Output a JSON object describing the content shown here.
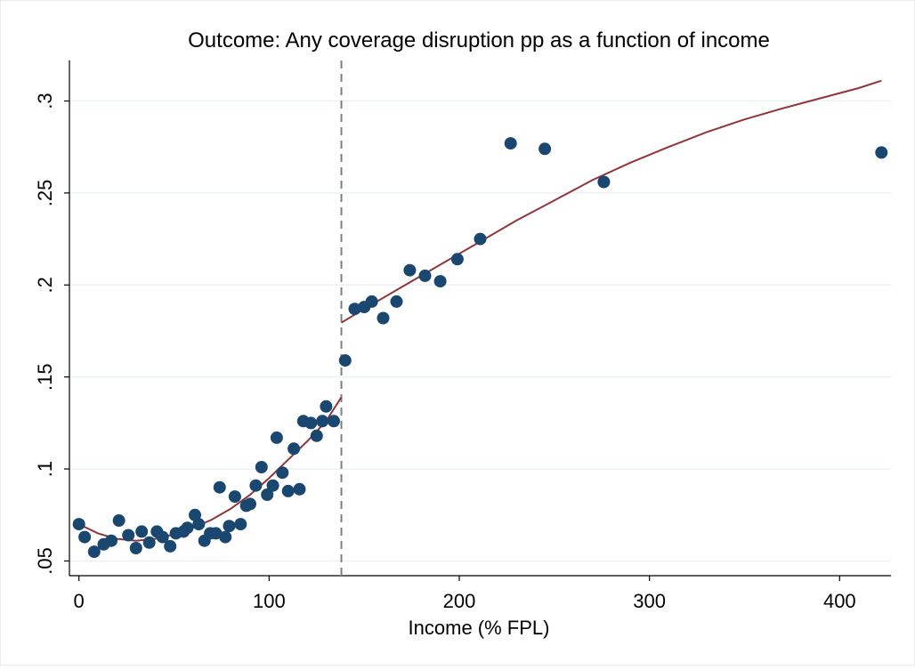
{
  "chart_data": {
    "type": "scatter",
    "title": "Outcome: Any coverage disruption pp as a function of income",
    "xlabel": "Income (% FPL)",
    "ylabel": "",
    "xlim": [
      -5,
      427
    ],
    "ylim": [
      0.042,
      0.322
    ],
    "x_ticks": [
      0,
      100,
      200,
      300,
      400
    ],
    "y_ticks": [
      0.05,
      0.1,
      0.15,
      0.2,
      0.25,
      0.3
    ],
    "x_tick_labels": [
      "0",
      "100",
      "200",
      "300",
      "400"
    ],
    "y_tick_labels": [
      ".05",
      ".1",
      ".15",
      ".2",
      ".25",
      ".3"
    ],
    "grid": "horizontal",
    "cutoff_x": 138,
    "colors": {
      "points": "#1a476f",
      "fit": "#90353b",
      "cutoff": "#808080",
      "grid": "#eaf2f3"
    },
    "points": [
      [
        0,
        0.07
      ],
      [
        3,
        0.063
      ],
      [
        8,
        0.055
      ],
      [
        13,
        0.059
      ],
      [
        17,
        0.061
      ],
      [
        21,
        0.072
      ],
      [
        26,
        0.064
      ],
      [
        30,
        0.057
      ],
      [
        33,
        0.066
      ],
      [
        37,
        0.06
      ],
      [
        41,
        0.066
      ],
      [
        44,
        0.063
      ],
      [
        48,
        0.058
      ],
      [
        51,
        0.065
      ],
      [
        55,
        0.066
      ],
      [
        57,
        0.068
      ],
      [
        61,
        0.075
      ],
      [
        63,
        0.07
      ],
      [
        66,
        0.061
      ],
      [
        69,
        0.065
      ],
      [
        72,
        0.065
      ],
      [
        74,
        0.09
      ],
      [
        77,
        0.063
      ],
      [
        79,
        0.069
      ],
      [
        82,
        0.085
      ],
      [
        85,
        0.07
      ],
      [
        88,
        0.08
      ],
      [
        90,
        0.081
      ],
      [
        93,
        0.091
      ],
      [
        96,
        0.101
      ],
      [
        99,
        0.086
      ],
      [
        102,
        0.091
      ],
      [
        104,
        0.117
      ],
      [
        107,
        0.098
      ],
      [
        110,
        0.088
      ],
      [
        113,
        0.111
      ],
      [
        116,
        0.089
      ],
      [
        118,
        0.126
      ],
      [
        122,
        0.125
      ],
      [
        125,
        0.118
      ],
      [
        128,
        0.126
      ],
      [
        130,
        0.134
      ],
      [
        134,
        0.126
      ],
      [
        140,
        0.159
      ],
      [
        145,
        0.187
      ],
      [
        150,
        0.188
      ],
      [
        154,
        0.191
      ],
      [
        160,
        0.182
      ],
      [
        167,
        0.191
      ],
      [
        174,
        0.208
      ],
      [
        182,
        0.205
      ],
      [
        190,
        0.202
      ],
      [
        199,
        0.214
      ],
      [
        211,
        0.225
      ],
      [
        227,
        0.277
      ],
      [
        245,
        0.274
      ],
      [
        276,
        0.256
      ],
      [
        422,
        0.272
      ]
    ],
    "fit_left": [
      [
        0,
        0.07
      ],
      [
        10,
        0.065
      ],
      [
        20,
        0.062
      ],
      [
        30,
        0.061
      ],
      [
        40,
        0.062
      ],
      [
        50,
        0.0645
      ],
      [
        60,
        0.068
      ],
      [
        70,
        0.0725
      ],
      [
        80,
        0.0785
      ],
      [
        90,
        0.086
      ],
      [
        100,
        0.095
      ],
      [
        110,
        0.105
      ],
      [
        120,
        0.115
      ],
      [
        130,
        0.126
      ],
      [
        138,
        0.139
      ]
    ],
    "fit_right": [
      [
        138,
        0.1795
      ],
      [
        150,
        0.187
      ],
      [
        170,
        0.199
      ],
      [
        190,
        0.211
      ],
      [
        210,
        0.223
      ],
      [
        230,
        0.235
      ],
      [
        250,
        0.246
      ],
      [
        270,
        0.257
      ],
      [
        290,
        0.2665
      ],
      [
        310,
        0.275
      ],
      [
        330,
        0.283
      ],
      [
        350,
        0.29
      ],
      [
        370,
        0.296
      ],
      [
        390,
        0.3015
      ],
      [
        410,
        0.307
      ],
      [
        422,
        0.311
      ]
    ]
  }
}
